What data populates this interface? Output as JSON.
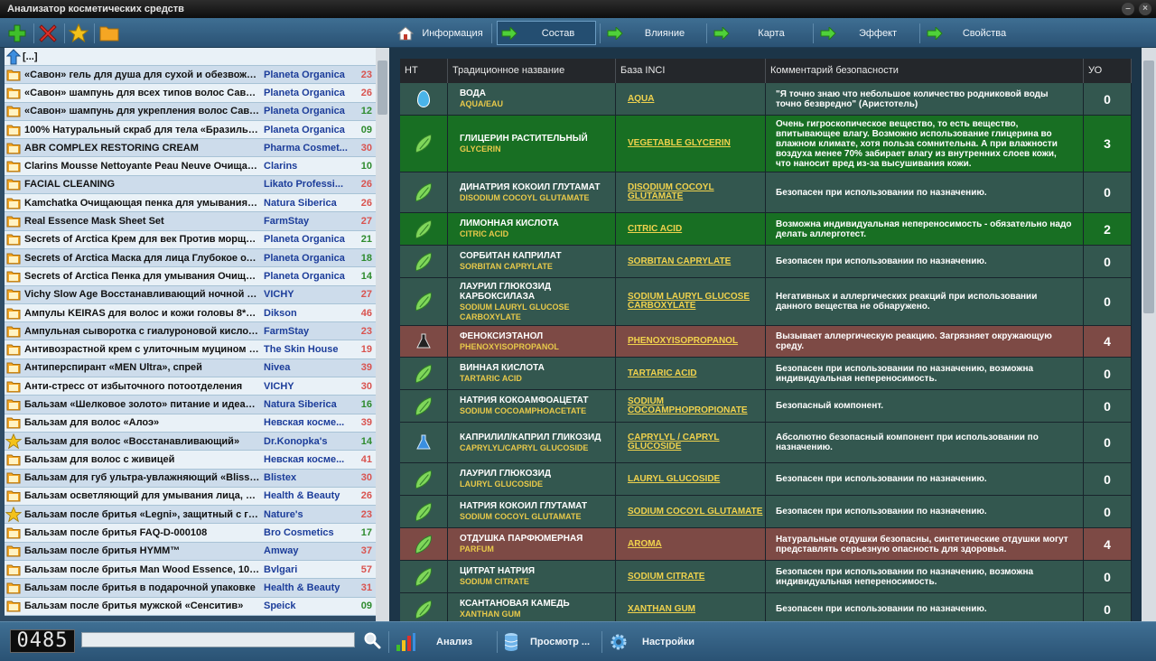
{
  "window": {
    "title": "Анализатор косметических средств"
  },
  "toolbar": {
    "add": "add",
    "delete": "delete",
    "favorite": "favorite",
    "open": "open"
  },
  "list": {
    "up_label": "[...]",
    "items": [
      {
        "name": "«Савон» гель для душа для сухой и обезвожен...",
        "brand": "Planeta Organica",
        "score": "23",
        "color": "#d9534f",
        "icon": "folder"
      },
      {
        "name": "«Савон» шампунь для всех типов волос Савон ...",
        "brand": "Planeta Organica",
        "score": "26",
        "color": "#d9534f",
        "icon": "folder"
      },
      {
        "name": "«Савон» шампунь для укрепления волос Савон...",
        "brand": "Planeta Organica",
        "score": "12",
        "color": "#2e8b2e",
        "icon": "folder"
      },
      {
        "name": "100% Натуральный скраб для тела «Бразильск...",
        "brand": "Planeta Organica",
        "score": "09",
        "color": "#2e8b2e",
        "icon": "folder"
      },
      {
        "name": "ABR COMPLEX RESTORING CREAM",
        "brand": "Pharma Cosmet...",
        "score": "30",
        "color": "#d9534f",
        "icon": "folder"
      },
      {
        "name": "Clarins Mousse Nettoyante Peau Neuve Очищаю...",
        "brand": "Clarins",
        "score": "10",
        "color": "#2e8b2e",
        "icon": "folder"
      },
      {
        "name": "FACIAL CLEANING",
        "brand": "Likato Professi...",
        "score": "26",
        "color": "#d9534f",
        "icon": "folder"
      },
      {
        "name": "Kamchatka Очищающая пенка для умывания ид...",
        "brand": "Natura Siberica",
        "score": "26",
        "color": "#d9534f",
        "icon": "folder"
      },
      {
        "name": "Real Essence Mask Sheet Set",
        "brand": "FarmStay",
        "score": "27",
        "color": "#d9534f",
        "icon": "folder"
      },
      {
        "name": "Secrets of Arctica Крем для век Против морщин...",
        "brand": "Planeta Organica",
        "score": "21",
        "color": "#2e8b2e",
        "icon": "folder"
      },
      {
        "name": "Secrets of Arctica Маска для лица Глубокое очи...",
        "brand": "Planeta Organica",
        "score": "18",
        "color": "#2e8b2e",
        "icon": "folder"
      },
      {
        "name": "Secrets of Arctica Пенка для умывания Очищени...",
        "brand": "Planeta Organica",
        "score": "14",
        "color": "#2e8b2e",
        "icon": "folder"
      },
      {
        "name": "Vichy Slow Age Восстанавливающий ночной кре...",
        "brand": "VICHY",
        "score": "27",
        "color": "#d9534f",
        "icon": "folder"
      },
      {
        "name": "Ампулы KEIRAS для волос и кожи головы 8*10...",
        "brand": "Dikson",
        "score": "46",
        "color": "#d9534f",
        "icon": "folder"
      },
      {
        "name": "Ампульная сыворотка с гиалуроновой кислото...",
        "brand": "FarmStay",
        "score": "23",
        "color": "#d9534f",
        "icon": "folder"
      },
      {
        "name": "Антивозрастной крем с улиточным муцином «...",
        "brand": "The Skin House",
        "score": "19",
        "color": "#d9534f",
        "icon": "folder"
      },
      {
        "name": "Антиперспирант «MEN Ultra», спрей",
        "brand": "Nivea",
        "score": "39",
        "color": "#d9534f",
        "icon": "folder"
      },
      {
        "name": "Анти-стресс от избыточного потоотделения",
        "brand": "VICHY",
        "score": "30",
        "color": "#d9534f",
        "icon": "folder"
      },
      {
        "name": "Бальзам «Шелковое золото» питание и идеаль...",
        "brand": "Natura Siberica",
        "score": "16",
        "color": "#2e8b2e",
        "icon": "folder"
      },
      {
        "name": "Бальзам для волос «Алоэ»",
        "brand": "Невская косме...",
        "score": "39",
        "color": "#d9534f",
        "icon": "folder"
      },
      {
        "name": "Бальзам для волос «Восстанавливающий»",
        "brand": "Dr.Konopka's",
        "score": "14",
        "color": "#2e8b2e",
        "icon": "star"
      },
      {
        "name": "Бальзам для волос с живицей",
        "brand": "Невская косме...",
        "score": "41",
        "color": "#d9534f",
        "icon": "folder"
      },
      {
        "name": "Бальзам для губ ультра-увлажняющий «Bliss Fli...",
        "brand": "Blistex",
        "score": "30",
        "color": "#d9534f",
        "icon": "folder"
      },
      {
        "name": "Бальзам осветляющий для умывания лица, шен...",
        "brand": "Health & Beauty",
        "score": "26",
        "color": "#d9534f",
        "icon": "folder"
      },
      {
        "name": "Бальзам после бритья «Legni», защитный с гва...",
        "brand": "Nature's",
        "score": "23",
        "color": "#d9534f",
        "icon": "star"
      },
      {
        "name": "Бальзам после бритья FAQ-D-000108",
        "brand": "Bro Cosmetics",
        "score": "17",
        "color": "#2e8b2e",
        "icon": "folder"
      },
      {
        "name": "Бальзам после бритья HYMM™",
        "brand": "Amway",
        "score": "37",
        "color": "#d9534f",
        "icon": "folder"
      },
      {
        "name": "Бальзам после бритья Man Wood Essence, 100 мл",
        "brand": "Bvlgari",
        "score": "57",
        "color": "#d9534f",
        "icon": "folder"
      },
      {
        "name": "Бальзам после бритья в подарочной упаковке",
        "brand": "Health & Beauty",
        "score": "31",
        "color": "#d9534f",
        "icon": "folder"
      },
      {
        "name": "Бальзам после бритья мужской «Сенситив»",
        "brand": "Speick",
        "score": "09",
        "color": "#2e8b2e",
        "icon": "folder"
      }
    ]
  },
  "tabs": [
    {
      "label": "Информация",
      "icon": "home-icon"
    },
    {
      "label": "Состав",
      "icon": "arrow-right-icon"
    },
    {
      "label": "Влияние",
      "icon": "arrow-right-icon"
    },
    {
      "label": "Карта",
      "icon": "arrow-right-icon"
    },
    {
      "label": "Эффект",
      "icon": "arrow-right-icon"
    },
    {
      "label": "Свойства",
      "icon": "arrow-right-icon"
    }
  ],
  "table": {
    "headers": {
      "nt": "НТ",
      "name": "Традиционное название",
      "inci": "База INCI",
      "comment": "Комментарий безопасности",
      "score": "УО"
    },
    "rows": [
      {
        "icon": "water-drop",
        "name": "ВОДА",
        "latin": "AQUA/EAU",
        "inci": "AQUA",
        "comment": "\"Я точно знаю что небольшое количество родниковой воды точно безвредно\" (Аристотель)",
        "score": "0",
        "tone": "safe",
        "h": 36
      },
      {
        "icon": "leaf",
        "name": "ГЛИЦЕРИН РАСТИТЕЛЬНЫЙ",
        "latin": "GLYCERIN",
        "inci": "VEGETABLE GLYCERIN",
        "comment": "Очень гигроскопическое вещество, то есть вещество, впитывающее влагу. Возможно использование глицерина во влажном климате, хотя польза сомнительна. А при влажности воздуха менее 70% забирает влагу из внутренних слоев кожи, что наносит вред из-за высушивания кожи.",
        "score": "3",
        "tone": "green",
        "h": 63
      },
      {
        "icon": "leaf",
        "name": "ДИНАТРИЯ КОКОИЛ ГЛУТАМАТ",
        "latin": "DISODIUM COCOYL GLUTAMATE",
        "inci": "DISODIUM COCOYL GLUTAMATE",
        "comment": "Безопасен при использовании по назначению.",
        "score": "0",
        "tone": "safe",
        "h": 45
      },
      {
        "icon": "leaf",
        "name": "ЛИМОННАЯ КИСЛОТА",
        "latin": "CITRIC ACID",
        "inci": "CITRIC ACID",
        "comment": "Возможна индивидуальная непереносимость - обязательно надо делать аллерготест.",
        "score": "2",
        "tone": "green",
        "h": 36
      },
      {
        "icon": "leaf",
        "name": "СОРБИТАН КАПРИЛАТ",
        "latin": "SORBITAN CAPRYLATE",
        "inci": "SORBITAN CAPRYLATE",
        "comment": "Безопасен при использовании по назначению.",
        "score": "0",
        "tone": "safe",
        "h": 36
      },
      {
        "icon": "leaf",
        "name": "ЛАУРИЛ ГЛЮКОЗИД КАРБОКСИЛАЗА",
        "latin": "SODIUM LAURYL GLUCOSE CARBOXYLATE",
        "inci": "SODIUM LAURYL GLUCOSE CARBOXYLATE",
        "comment": "Негативных и аллергических реакций при использовании данного вещества не обнаружено.",
        "score": "0",
        "tone": "safe",
        "h": 53
      },
      {
        "icon": "flask-dark",
        "name": "ФЕНОКСИЭТАНОЛ",
        "latin": "PHENOXYISOPROPANOL",
        "inci": "PHENOXYISOPROPANOL",
        "comment": "Вызывает аллергическую реакцию. Загрязняет окружающую среду.",
        "score": "4",
        "tone": "red",
        "h": 35
      },
      {
        "icon": "leaf",
        "name": "ВИННАЯ КИСЛОТА",
        "latin": "TARTARIC ACID",
        "inci": "TARTARIC ACID",
        "comment": "Безопасен при использовании по назначению, возможна индивидуальная непереносимость.",
        "score": "0",
        "tone": "safe",
        "h": 36
      },
      {
        "icon": "leaf",
        "name": "НАТРИЯ КОКОАМФОАЦЕТАТ",
        "latin": "SODIUM COCOAMPHOACETATE",
        "inci": "SODIUM COCOAMPHOPROPIONATE",
        "comment": "Безопасный компонент.",
        "score": "0",
        "tone": "safe",
        "h": 36
      },
      {
        "icon": "flask-blue",
        "name": "КАПРИЛИЛ/КАПРИЛ ГЛИКОЗИД",
        "latin": "CAPRYLYL/CAPRYL GLUCOSIDE",
        "inci": "CAPRYLYL / CAPRYL GLUCOSIDE",
        "comment": "Абсолютно безопасный компонент при использовании по назначению.",
        "score": "0",
        "tone": "safe",
        "h": 45
      },
      {
        "icon": "leaf",
        "name": "ЛАУРИЛ ГЛЮКОЗИД",
        "latin": "LAURYL GLUCOSIDE",
        "inci": "LAURYL GLUCOSIDE",
        "comment": "Безопасен при использовании по назначению.",
        "score": "0",
        "tone": "safe",
        "h": 36
      },
      {
        "icon": "leaf",
        "name": "НАТРИЯ КОКОИЛ ГЛУТАМАТ",
        "latin": "SODIUM COCOYL GLUTAMATE",
        "inci": "SODIUM COCOYL GLUTAMATE",
        "comment": "Безопасен при использовании по назначению.",
        "score": "0",
        "tone": "safe",
        "h": 36
      },
      {
        "icon": "leaf",
        "name": "ОТДУШКА ПАРФЮМЕРНАЯ",
        "latin": "PARFUM",
        "inci": "AROMA",
        "comment": "Натуральные отдушки безопасны, синтетические отдушки могут представлять серьезную опасность для здоровья.",
        "score": "4",
        "tone": "red",
        "h": 36
      },
      {
        "icon": "leaf",
        "name": "ЦИТРАТ НАТРИЯ",
        "latin": "SODIUM CITRATE",
        "inci": "SODIUM CITRATE",
        "comment": "Безопасен при использовании по назначению, возможна индивидуальная непереносимость.",
        "score": "0",
        "tone": "safe",
        "h": 36
      },
      {
        "icon": "leaf",
        "name": "КСАНТАНОВАЯ КАМЕДЬ",
        "latin": "XANTHAN GUM",
        "inci": "XANTHAN GUM",
        "comment": "Безопасен при использовании по назначению.",
        "score": "0",
        "tone": "safe",
        "h": 36
      }
    ]
  },
  "bottom": {
    "counter": "0485",
    "search_placeholder": "",
    "analysis_label": "Анализ",
    "view_label": "Просмотр ...",
    "settings_label": "Настройки"
  }
}
